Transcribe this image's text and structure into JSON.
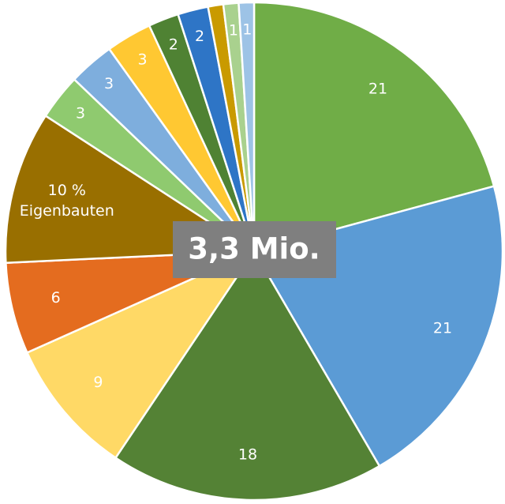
{
  "chart_data": {
    "type": "pie",
    "center_label": "3,3 Mio.",
    "slices": [
      {
        "value": 21,
        "label": "21",
        "color": "#70ad47",
        "label_color": "#ffffff"
      },
      {
        "value": 21,
        "label": "21",
        "color": "#5b9bd5",
        "label_color": "#ffffff"
      },
      {
        "value": 18,
        "label": "18",
        "color": "#548235",
        "label_color": "#ffffff"
      },
      {
        "value": 9,
        "label": "9",
        "color": "#ffd966",
        "label_color": "#ffffff"
      },
      {
        "value": 6,
        "label": "6",
        "color": "#e46c1f",
        "label_color": "#ffffff"
      },
      {
        "value": 10,
        "label": "10 %",
        "label2": "Eigenbauten",
        "color": "#996f00",
        "label_color": "#ffffff"
      },
      {
        "value": 3,
        "label": "3",
        "color": "#8fca6f",
        "label_color": "#ffffff"
      },
      {
        "value": 3,
        "label": "3",
        "color": "#7eaedd",
        "label_color": "#ffffff"
      },
      {
        "value": 3,
        "label": "3",
        "color": "#ffc832",
        "label_color": "#ffffff"
      },
      {
        "value": 2,
        "label": "2",
        "color": "#4f8233",
        "label_color": "#ffffff"
      },
      {
        "value": 2,
        "label": "2",
        "color": "#2e75c6",
        "label_color": "#ffffff"
      },
      {
        "value": 1,
        "label": "",
        "color": "#c99a00",
        "label_color": "#ffffff"
      },
      {
        "value": 1,
        "label": "1",
        "color": "#a9d18e",
        "label_color": "#ffffff"
      },
      {
        "value": 1,
        "label": "1",
        "color": "#9dc3e6",
        "label_color": "#ffffff"
      }
    ]
  }
}
